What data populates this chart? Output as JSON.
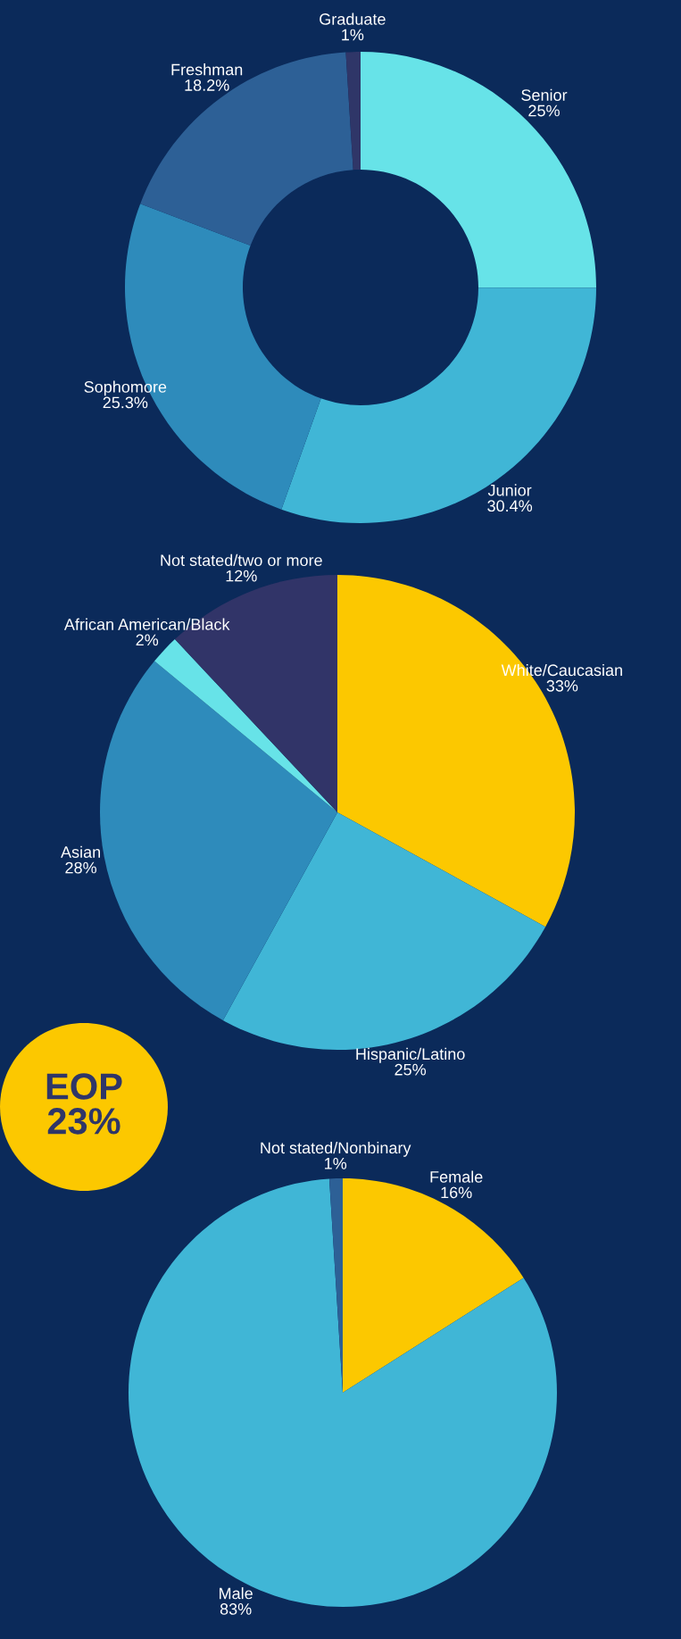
{
  "chart_data": [
    {
      "type": "donut",
      "categories": [
        "Senior",
        "Junior",
        "Sophomore",
        "Freshman",
        "Graduate"
      ],
      "values": [
        25,
        30.4,
        25.3,
        18.2,
        1
      ],
      "value_labels": [
        "25%",
        "30.4%",
        "25.3%",
        "18.2%",
        "1%"
      ],
      "colors": [
        "#67e3e8",
        "#40b6d6",
        "#2e8bbb",
        "#2d6096",
        "#2f3668"
      ]
    },
    {
      "type": "pie",
      "categories": [
        "White/Caucasian",
        "Hispanic/Latino",
        "Asian",
        "African American/Black",
        "Not stated/two or more"
      ],
      "values": [
        33,
        25,
        28,
        2,
        12
      ],
      "value_labels": [
        "33%",
        "25%",
        "28%",
        "2%",
        "12%"
      ],
      "colors": [
        "#fcc800",
        "#40b6d6",
        "#2e8bbb",
        "#67e3e8",
        "#313468"
      ]
    },
    {
      "type": "other",
      "title": "EOP",
      "annotations": [
        "23%"
      ]
    },
    {
      "type": "pie",
      "categories": [
        "Female",
        "Male",
        "Not stated/Nonbinary"
      ],
      "values": [
        16,
        83,
        1
      ],
      "value_labels": [
        "16%",
        "83%",
        "1%"
      ],
      "colors": [
        "#fcc800",
        "#40b6d6",
        "#2d6096"
      ]
    }
  ]
}
